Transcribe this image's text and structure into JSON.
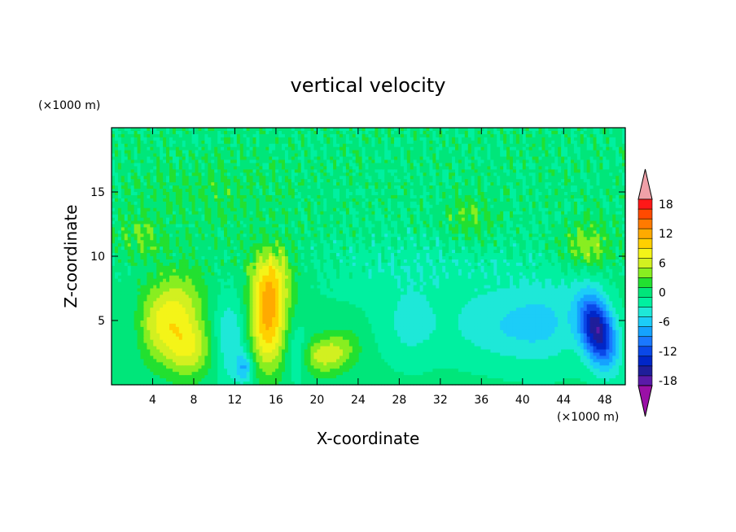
{
  "chart_data": {
    "type": "heatmap",
    "title": "vertical velocity",
    "xlabel": "X-coordinate",
    "ylabel": "Z-coordinate",
    "x_unit": "(×1000 m)",
    "y_unit": "(×1000 m)",
    "xlim": [
      0,
      50
    ],
    "ylim": [
      0,
      20
    ],
    "x_ticks": [
      4,
      8,
      12,
      16,
      20,
      24,
      28,
      32,
      36,
      40,
      44,
      48
    ],
    "y_ticks": [
      5,
      10,
      15
    ],
    "colorbar": {
      "levels": [
        -20,
        -18,
        -16,
        -14,
        -12,
        -10,
        -8,
        -6,
        -4,
        -2,
        0,
        2,
        4,
        6,
        8,
        10,
        12,
        14,
        16,
        18,
        20
      ],
      "labels": [
        "18",
        "12",
        "6",
        "0",
        "-6",
        "-12",
        "-18"
      ],
      "label_values": [
        18,
        12,
        6,
        0,
        -6,
        -12,
        -18
      ],
      "colors": [
        "#9a10a6",
        "#5a1aa8",
        "#1f1e9a",
        "#0026c8",
        "#0a48e8",
        "#1a78ff",
        "#15a2ff",
        "#1ccdf8",
        "#1ee8d8",
        "#00f0a0",
        "#00e67a",
        "#22e030",
        "#88ee20",
        "#d2f020",
        "#f4f418",
        "#ffd000",
        "#ffaa00",
        "#ff7a00",
        "#ff4a00",
        "#ff1818",
        "#f0a0a8"
      ],
      "extend": "both"
    },
    "features": [
      {
        "x": 5.5,
        "z": 5.5,
        "sx": 2.2,
        "sz": 2.2,
        "amp": 8,
        "tilt": -0.9
      },
      {
        "x": 7.5,
        "z": 2.8,
        "sx": 1.8,
        "sz": 1.6,
        "amp": 7
      },
      {
        "x": 15.2,
        "z": 5.2,
        "sx": 1.3,
        "sz": 2.8,
        "amp": 12
      },
      {
        "x": 15.8,
        "z": 8.5,
        "sx": 1.5,
        "sz": 1.6,
        "amp": 5
      },
      {
        "x": 20.5,
        "z": 2.2,
        "sx": 1.6,
        "sz": 1.0,
        "amp": 6
      },
      {
        "x": 22.5,
        "z": 3.0,
        "sx": 1.3,
        "sz": 1.0,
        "amp": 3
      },
      {
        "x": 11.5,
        "z": 3.5,
        "sx": 1.3,
        "sz": 2.5,
        "amp": -5
      },
      {
        "x": 13.0,
        "z": 1.3,
        "sx": 0.6,
        "sz": 0.8,
        "amp": -6
      },
      {
        "x": 18.0,
        "z": 2.5,
        "sx": 0.8,
        "sz": 1.5,
        "amp": -4
      },
      {
        "x": 47.3,
        "z": 4.2,
        "sx": 1.2,
        "sz": 2.0,
        "amp": -16,
        "tilt": 0.6
      },
      {
        "x": 46.3,
        "z": 10.8,
        "sx": 1.5,
        "sz": 1.2,
        "amp": 5
      },
      {
        "x": 3.0,
        "z": 11.5,
        "sx": 1.5,
        "sz": 1.2,
        "amp": 3
      },
      {
        "x": 34.8,
        "z": 13.0,
        "sx": 1.6,
        "sz": 1.3,
        "amp": 3
      },
      {
        "x": 38.0,
        "z": 4.5,
        "sx": 4.0,
        "sz": 2.0,
        "amp": -4
      },
      {
        "x": 29.0,
        "z": 4.5,
        "sx": 2.0,
        "sz": 2.0,
        "amp": -3
      },
      {
        "x": 42.5,
        "z": 5.0,
        "sx": 2.5,
        "sz": 2.5,
        "amp": -3
      },
      {
        "x": 2.0,
        "z": 4.0,
        "sx": 1.0,
        "sz": 2.0,
        "amp": -2
      },
      {
        "x": 10.0,
        "z": 15.0,
        "sx": 5.0,
        "sz": 2.0,
        "amp": 1.5
      },
      {
        "x": 30.0,
        "z": 9.0,
        "sx": 8.0,
        "sz": 2.0,
        "amp": -2
      }
    ]
  }
}
